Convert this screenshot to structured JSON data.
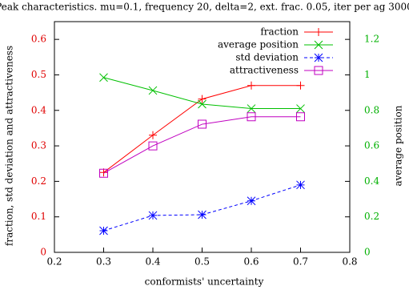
{
  "chart_data": {
    "type": "line",
    "title": "Peak characteristics. mu=0.1, frequency 20, delta=2, ext. frac. 0.05, iter per ag 3000",
    "x_label": "conformists' uncertainty",
    "y_label": "fraction, std deviation and attractiveness",
    "y2_label": "average position",
    "x": [
      0.3,
      0.4,
      0.5,
      0.6,
      0.7
    ],
    "xlim": [
      0.2,
      0.8
    ],
    "xticks": [
      0.2,
      0.3,
      0.4,
      0.5,
      0.6,
      0.7,
      0.8
    ],
    "ylim": [
      0,
      0.65
    ],
    "yticks": [
      0,
      0.1,
      0.2,
      0.3,
      0.4,
      0.5,
      0.6
    ],
    "y2lim": [
      0,
      1.3
    ],
    "y2ticks": [
      0,
      0.2,
      0.4,
      0.6,
      0.8,
      1,
      1.2
    ],
    "y_axis_color": "#e00000",
    "y2_axis_color": "#00b000",
    "legend": "top-right",
    "series": [
      {
        "name": "fraction",
        "color": "#ff0000",
        "marker": "plus",
        "dash": "solid",
        "values": [
          0.225,
          0.33,
          0.432,
          0.47,
          0.47
        ]
      },
      {
        "name": "average position",
        "color": "#00c000",
        "marker": "cross",
        "dash": "solid",
        "axis": "y2",
        "values": [
          0.985,
          0.912,
          0.835,
          0.81,
          0.81
        ]
      },
      {
        "name": "std deviation",
        "color": "#0000ff",
        "marker": "star",
        "dash": "dashed",
        "values": [
          0.061,
          0.104,
          0.106,
          0.145,
          0.19
        ]
      },
      {
        "name": "attractiveness",
        "color": "#c000c0",
        "marker": "square",
        "dash": "solid",
        "values": [
          0.223,
          0.3,
          0.361,
          0.382,
          0.382
        ]
      }
    ]
  }
}
